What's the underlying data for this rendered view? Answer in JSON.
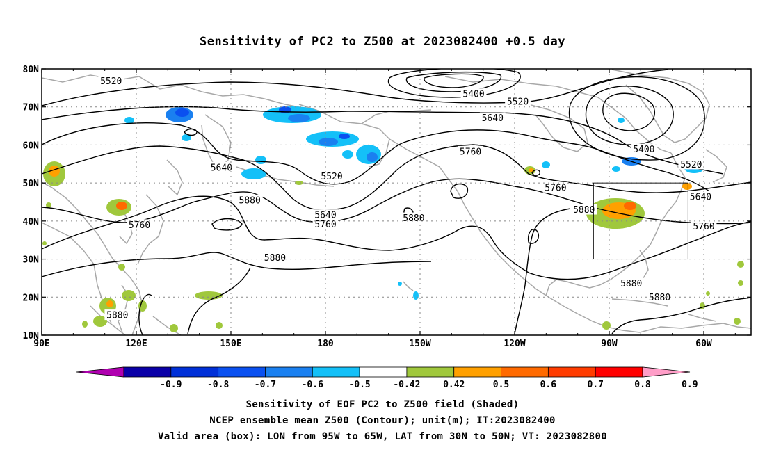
{
  "title": "Sensitivity of PC2 to Z500 at 2023082400 +0.5 day",
  "map": {
    "lat_ticks": [
      "80N",
      "70N",
      "60N",
      "50N",
      "40N",
      "30N",
      "20N",
      "10N"
    ],
    "lon_ticks": [
      "90E",
      "120E",
      "150E",
      "180",
      "150W",
      "120W",
      "90W",
      "60W"
    ],
    "lon_range": [
      "90E",
      "45W"
    ],
    "lat_range": [
      "10N",
      "80N"
    ],
    "grid": "dotted",
    "coastline_color": "#a0a0a0",
    "contour_color": "#000000",
    "contour_labels": [
      {
        "text": "5520",
        "lon": 112,
        "lat": 76.6
      },
      {
        "text": "5400",
        "lon": 227,
        "lat": 73.2
      },
      {
        "text": "5520",
        "lon": 241,
        "lat": 71.2
      },
      {
        "text": "5640",
        "lon": 233,
        "lat": 66.9
      },
      {
        "text": "5760",
        "lon": 226,
        "lat": 58.1
      },
      {
        "text": "5640",
        "lon": 147,
        "lat": 53.9
      },
      {
        "text": "5520",
        "lon": 182,
        "lat": 51.6
      },
      {
        "text": "5400",
        "lon": 281,
        "lat": 58.7
      },
      {
        "text": "5520",
        "lon": 296,
        "lat": 54.7
      },
      {
        "text": "5760",
        "lon": 253,
        "lat": 48.6
      },
      {
        "text": "5640",
        "lon": 299,
        "lat": 46.2
      },
      {
        "text": "5880",
        "lon": 156,
        "lat": 45.3
      },
      {
        "text": "5640",
        "lon": 180,
        "lat": 41.4
      },
      {
        "text": "5760",
        "lon": 180,
        "lat": 39.0
      },
      {
        "text": "5880",
        "lon": 208,
        "lat": 40.6
      },
      {
        "text": "5880",
        "lon": 262,
        "lat": 42.8
      },
      {
        "text": "5760",
        "lon": 300,
        "lat": 38.4
      },
      {
        "text": "5760",
        "lon": 121,
        "lat": 38.8
      },
      {
        "text": "5880",
        "lon": 164,
        "lat": 30.2
      },
      {
        "text": "5880",
        "lon": 277,
        "lat": 23.4
      },
      {
        "text": "5880",
        "lon": 286,
        "lat": 19.8
      },
      {
        "text": "5880",
        "lon": 114,
        "lat": 15.1
      }
    ],
    "valid_box": {
      "lon_min": -95,
      "lon_max": -65,
      "lat_min": 30,
      "lat_max": 50
    }
  },
  "colorbar": {
    "labels": [
      "-0.9",
      "-0.8",
      "-0.7",
      "-0.6",
      "-0.5",
      "-0.42",
      "0.42",
      "0.5",
      "0.6",
      "0.7",
      "0.8",
      "0.9"
    ],
    "colors": [
      "#b000b0",
      "#0a00a8",
      "#0030d8",
      "#0a50f0",
      "#1a80f0",
      "#14c0f8",
      "#ffffff",
      "#a0c83c",
      "#ffa000",
      "#ff6a00",
      "#ff3c00",
      "#ff0000",
      "#ff9ec8"
    ]
  },
  "captions": [
    "Sensitivity of EOF PC2 to Z500 field (Shaded)",
    "NCEP ensemble mean Z500 (Contour); unit(m); IT:2023082400",
    "Valid area (box): LON from 95W to 65W, LAT from 30N to 50N; VT: 2023082800"
  ]
}
